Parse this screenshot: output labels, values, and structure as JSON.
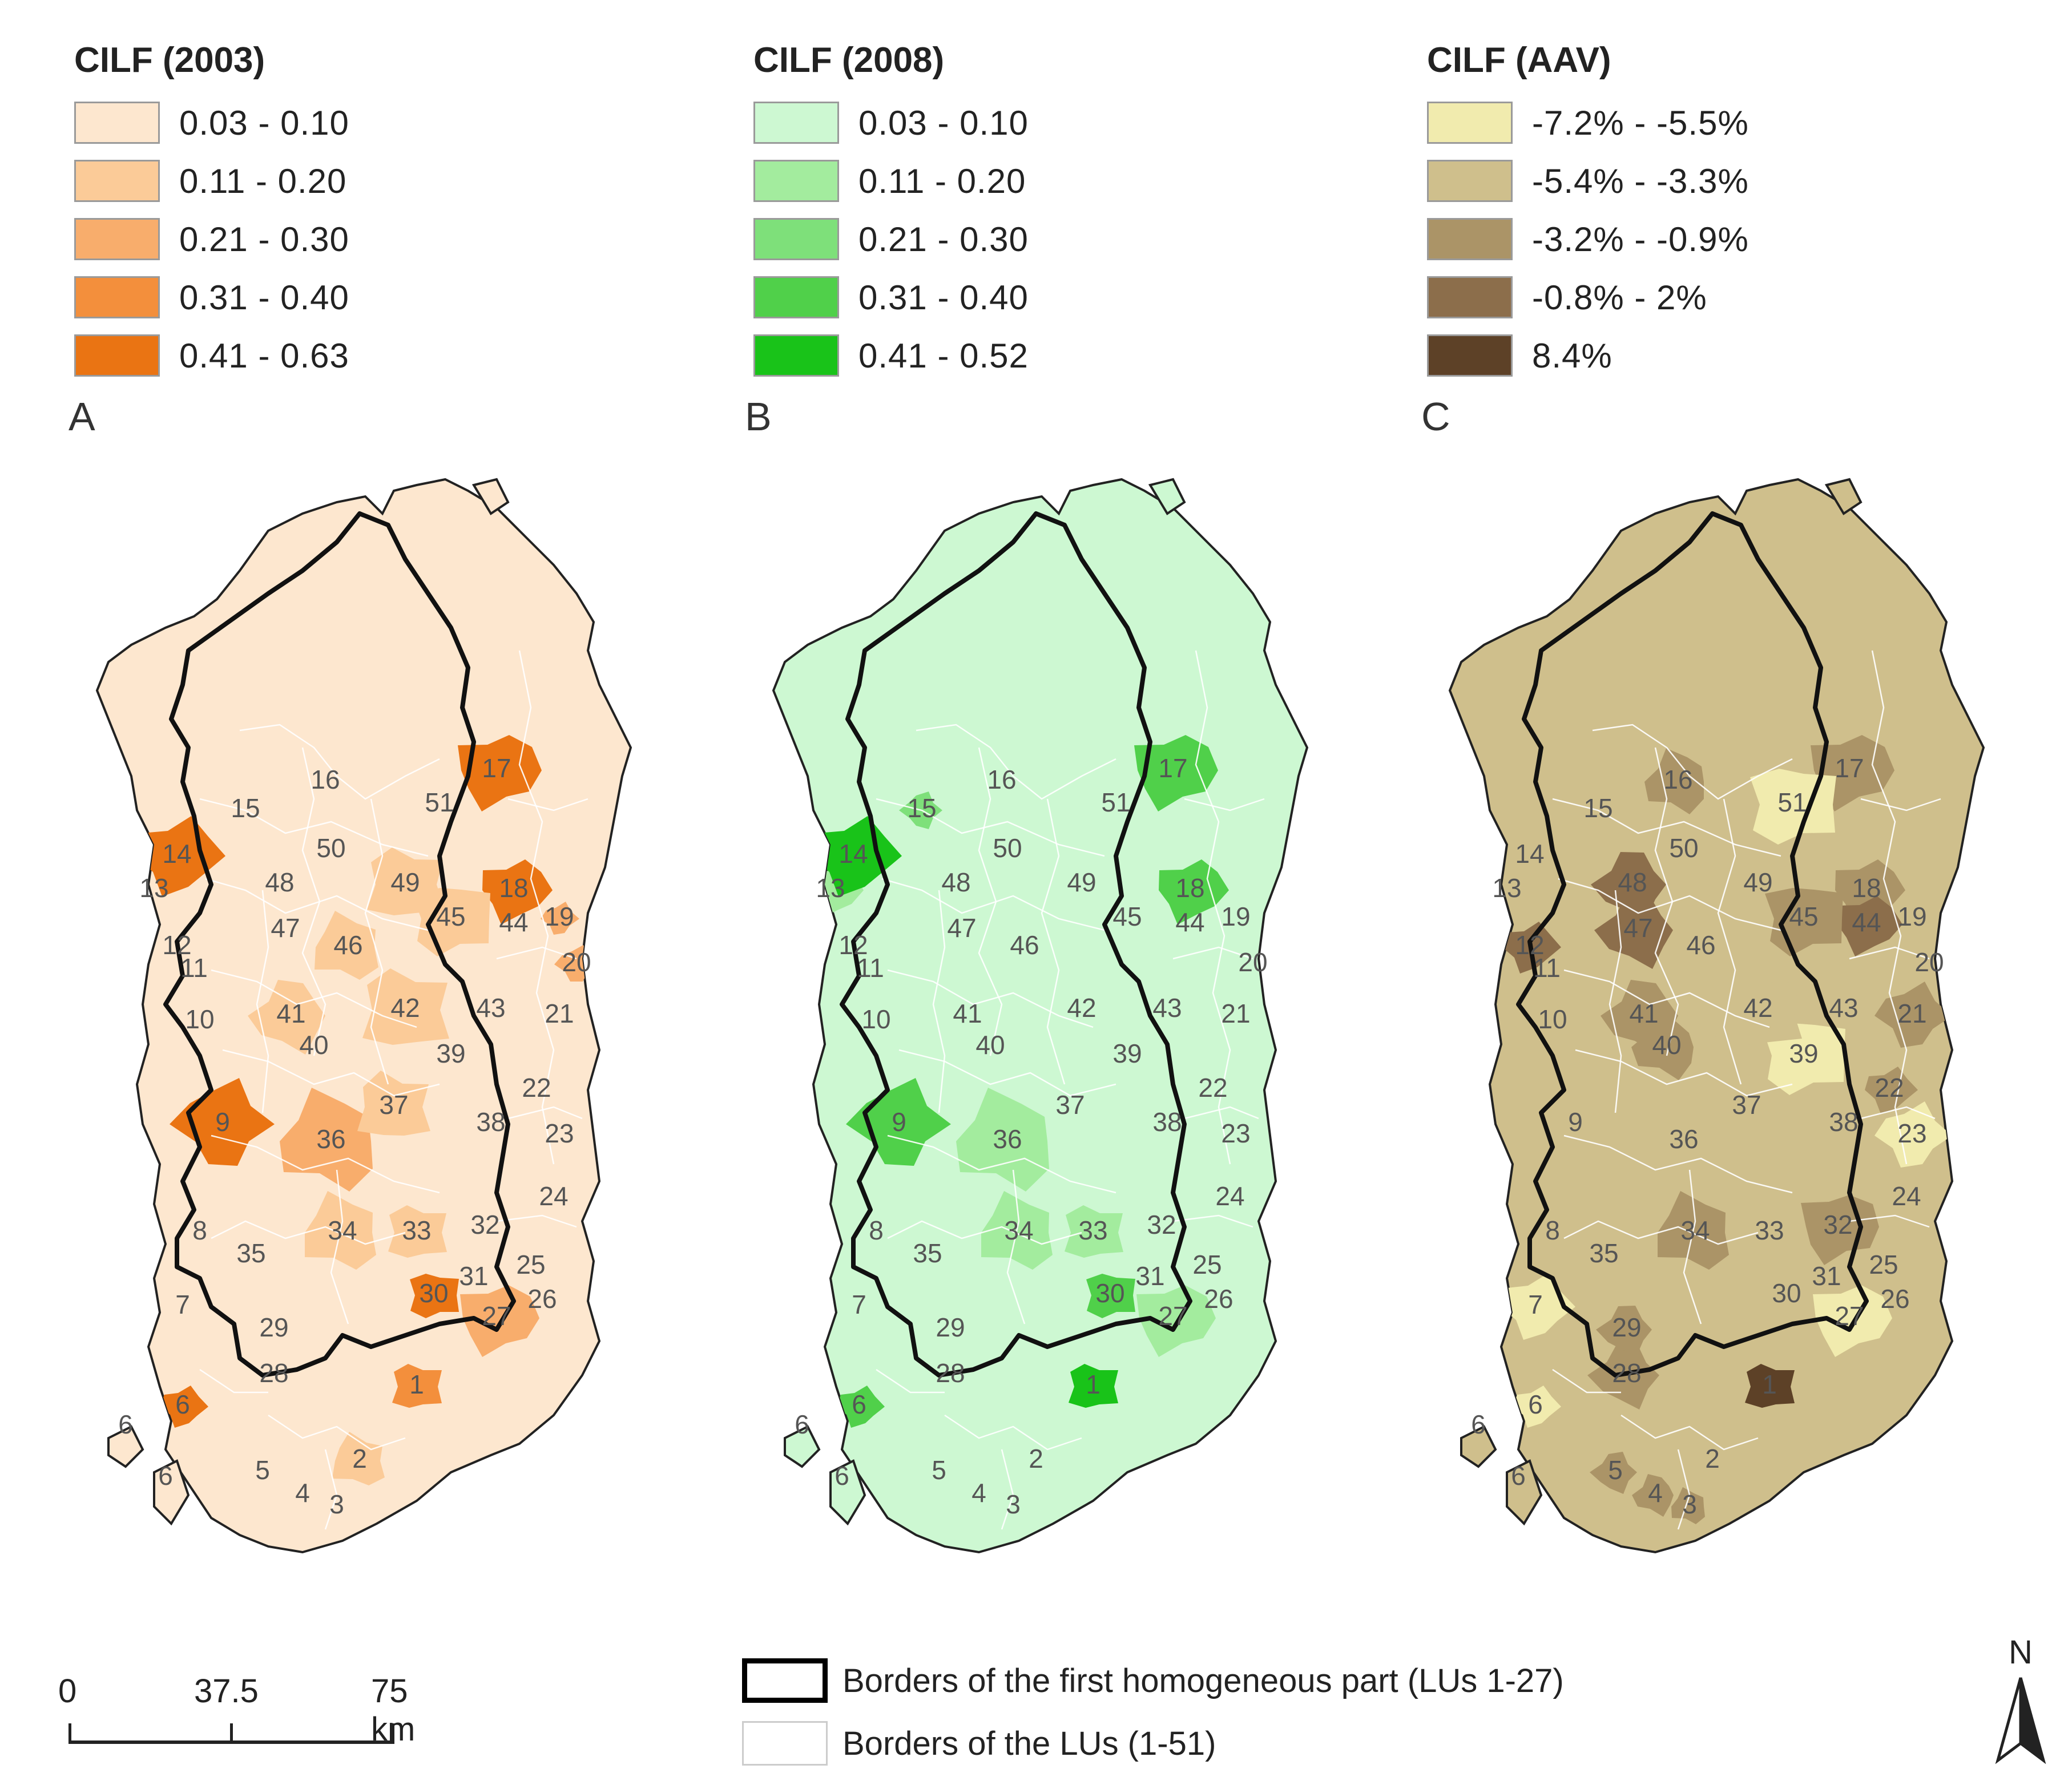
{
  "legends": [
    {
      "title": "CILF (2003)",
      "panel": "A",
      "classes": [
        {
          "label": "0.03  -  0.10",
          "color": "#fde7cf"
        },
        {
          "label": "0.11  -  0.20",
          "color": "#fbcb98"
        },
        {
          "label": "0.21  -  0.30",
          "color": "#f8ad6c"
        },
        {
          "label": "0.31  -  0.40",
          "color": "#f38f3c"
        },
        {
          "label": "0.41  -  0.63",
          "color": "#ea7413"
        }
      ]
    },
    {
      "title": "CILF (2008)",
      "panel": "B",
      "classes": [
        {
          "label": "0.03  -  0.10",
          "color": "#cdf8d2"
        },
        {
          "label": "0.11  -  0.20",
          "color": "#a3ec9e"
        },
        {
          "label": "0.21  -  0.30",
          "color": "#7ee07a"
        },
        {
          "label": "0.31  -  0.40",
          "color": "#50d04a"
        },
        {
          "label": "0.41  -  0.52",
          "color": "#19c319"
        }
      ]
    },
    {
      "title": "CILF (AAV)",
      "panel": "C",
      "classes": [
        {
          "label": "-7.2% - -5.5%",
          "color": "#f1ebae"
        },
        {
          "label": "-5.4% - -3.3%",
          "color": "#cfbf8c"
        },
        {
          "label": "-3.2% - -0.9%",
          "color": "#ab9467"
        },
        {
          "label": "-0.8% - 2%",
          "color": "#8c6e4b"
        },
        {
          "label": "8.4%",
          "color": "#5d4127"
        }
      ]
    }
  ],
  "lu_labels": [
    "1",
    "2",
    "3",
    "4",
    "5",
    "6",
    "6",
    "6",
    "7",
    "8",
    "9",
    "10",
    "11",
    "12",
    "13",
    "14",
    "15",
    "16",
    "17",
    "18",
    "19",
    "20",
    "21",
    "22",
    "23",
    "24",
    "25",
    "26",
    "27",
    "28",
    "29",
    "30",
    "31",
    "32",
    "33",
    "34",
    "35",
    "36",
    "37",
    "38",
    "39",
    "40",
    "41",
    "42",
    "43",
    "44",
    "45",
    "46",
    "47",
    "48",
    "49",
    "50",
    "51"
  ],
  "maps": [
    {
      "panel": "A",
      "base_class": 0,
      "lu_class": {
        "1": 3,
        "2": 1,
        "6": 4,
        "9": 4,
        "14": 4,
        "17": 4,
        "18": 4,
        "19": 2,
        "20": 2,
        "27": 2,
        "30": 4,
        "36": 2,
        "41": 1,
        "42": 1,
        "49": 1,
        "34": 1,
        "33": 1,
        "46": 1,
        "45": 1,
        "37": 1
      }
    },
    {
      "panel": "B",
      "base_class": 0,
      "lu_class": {
        "1": 4,
        "6": 3,
        "9": 3,
        "14": 4,
        "17": 3,
        "18": 3,
        "30": 3,
        "36": 1,
        "34": 1,
        "33": 1,
        "27": 1,
        "13": 1,
        "15": 2
      }
    },
    {
      "panel": "C",
      "base_class": 1,
      "lu_class": {
        "1": 4,
        "51": 0,
        "39": 0,
        "23": 0,
        "27": 0,
        "7": 0,
        "6": 0,
        "47": 3,
        "48": 3,
        "12": 3,
        "44": 3,
        "34": 2,
        "32": 2,
        "29": 2,
        "28": 2,
        "40": 2,
        "41": 2,
        "45": 2,
        "42": 1,
        "17": 2,
        "18": 2,
        "21": 2,
        "22": 2,
        "16": 2,
        "5": 2,
        "4": 2,
        "3": 2
      }
    }
  ],
  "scale_bar": {
    "labels": [
      "0",
      "37.5",
      "75 km"
    ]
  },
  "border_legend": [
    {
      "label": "Borders of the first homogeneous part (LUs 1-27)",
      "style": "thick"
    },
    {
      "label": "Borders of the LUs (1-51)",
      "style": "thin"
    }
  ],
  "north_label": "N"
}
